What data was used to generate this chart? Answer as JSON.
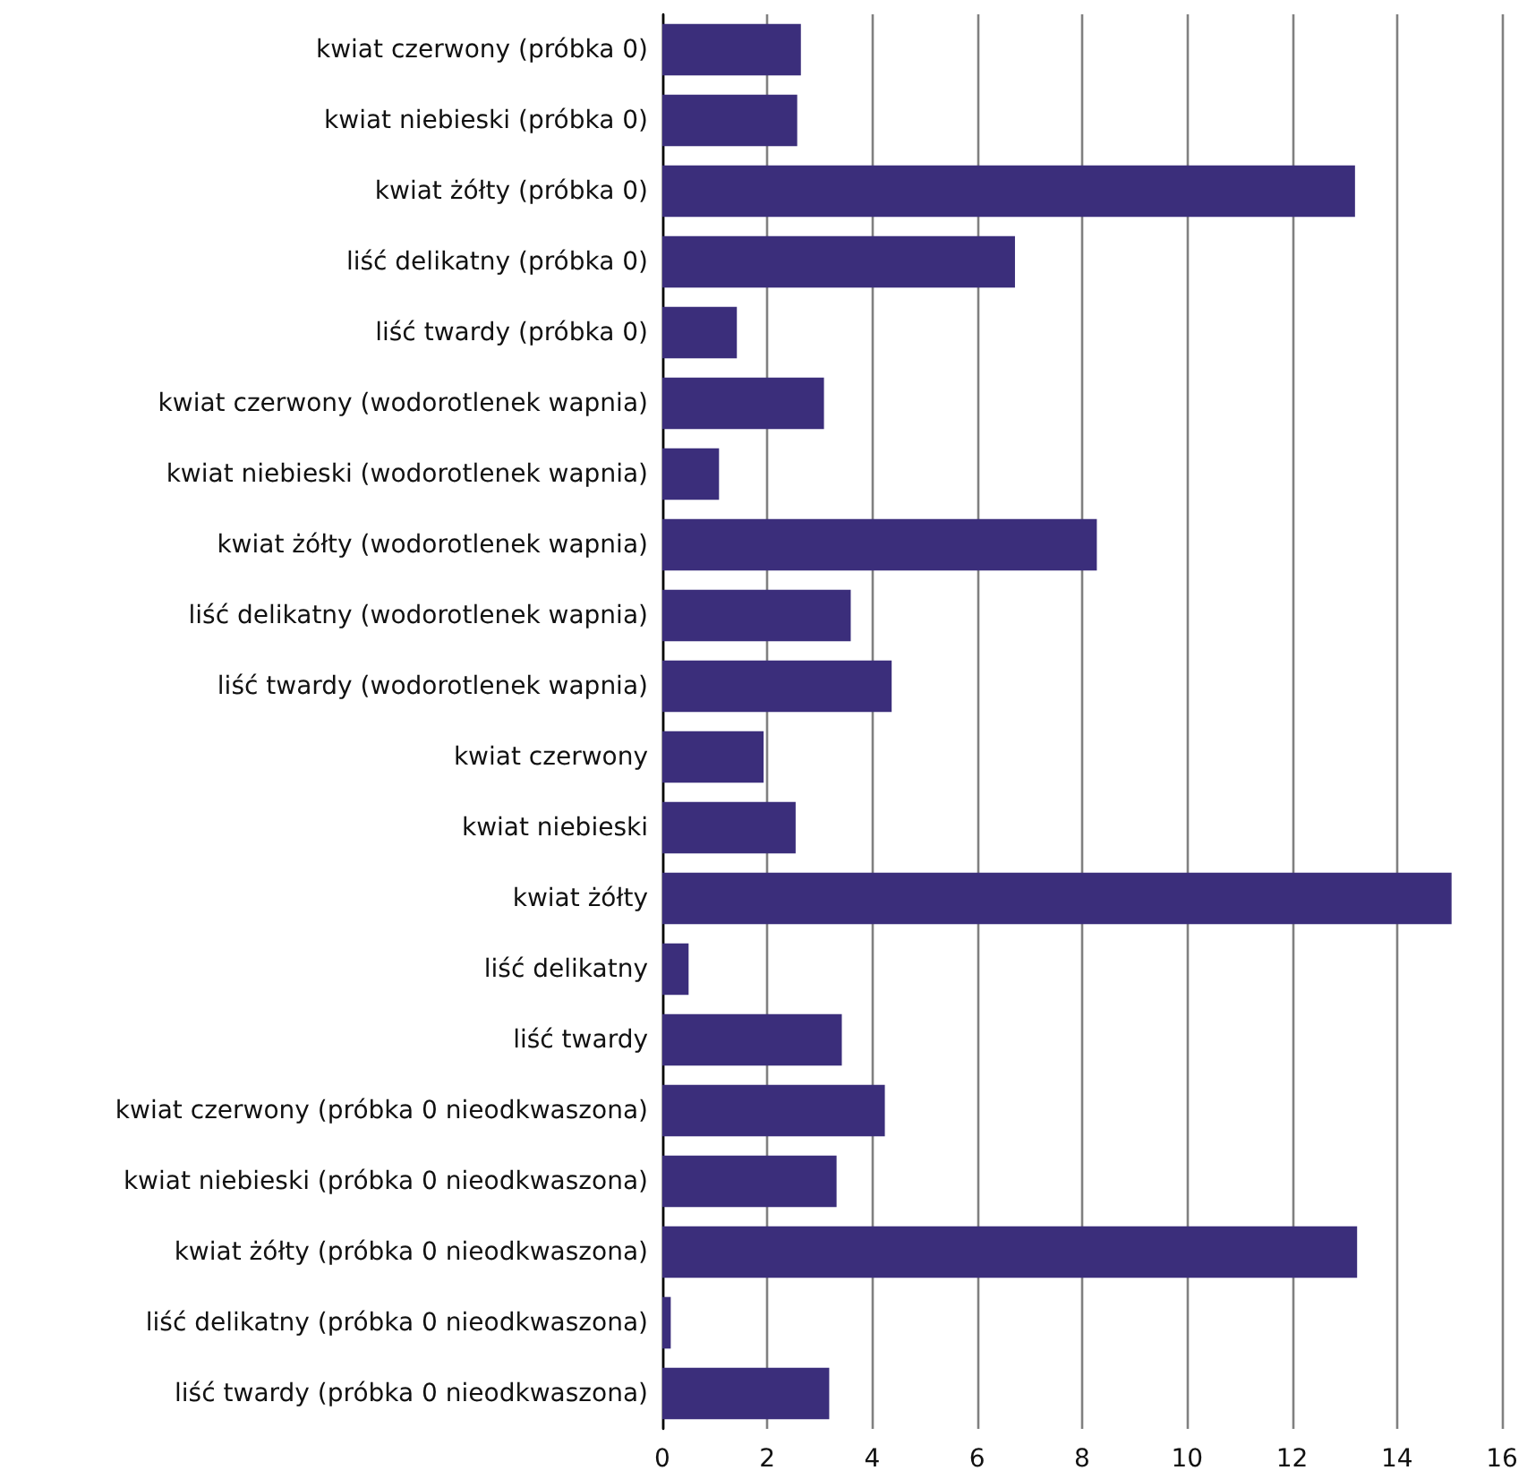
{
  "chart_data": {
    "type": "bar",
    "orientation": "horizontal",
    "categories": [
      "kwiat czerwony (próbka 0)",
      "kwiat niebieski (próbka 0)",
      "kwiat żółty (próbka 0)",
      "liść delikatny (próbka 0)",
      "liść twardy (próbka 0)",
      "kwiat czerwony (wodorotlenek wapnia)",
      "kwiat niebieski (wodorotlenek wapnia)",
      "kwiat żółty (wodorotlenek wapnia)",
      "liść delikatny (wodorotlenek wapnia)",
      "liść twardy (wodorotlenek wapnia)",
      "kwiat czerwony",
      "kwiat niebieski",
      "kwiat żółty",
      "liść delikatny",
      "liść twardy",
      "kwiat czerwony (próbka 0 nieodkwaszona)",
      "kwiat niebieski (próbka 0 nieodkwaszona)",
      "kwiat żółty (próbka 0 nieodkwaszona)",
      "liść delikatny (próbka 0 nieodkwaszona)",
      "liść twardy (próbka 0 nieodkwaszona)"
    ],
    "values": [
      2.64,
      2.57,
      13.2,
      6.72,
      1.42,
      3.08,
      1.08,
      8.28,
      3.59,
      4.37,
      1.93,
      2.54,
      15.04,
      0.5,
      3.42,
      4.24,
      3.32,
      13.24,
      0.16,
      3.18
    ],
    "color": "#3b2e7b",
    "xlim": [
      0,
      16
    ],
    "xticks": [
      0,
      2,
      4,
      6,
      8,
      10,
      12,
      14,
      16
    ],
    "grid": "x"
  }
}
